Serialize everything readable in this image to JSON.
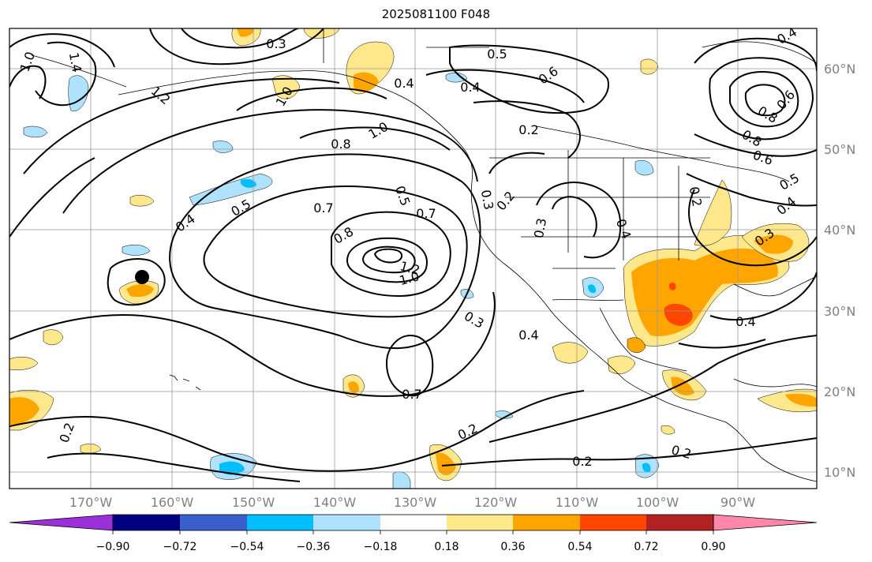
{
  "title": "2025081100 F048",
  "lon_labels": [
    "170°W",
    "160°W",
    "150°W",
    "140°W",
    "130°W",
    "120°W",
    "110°W",
    "100°W",
    "90°W"
  ],
  "lat_labels": [
    "60°N",
    "50°N",
    "40°N",
    "30°N",
    "20°N",
    "10°N"
  ],
  "colorbar": {
    "tick_labels": [
      "−0.90",
      "−0.72",
      "−0.54",
      "−0.36",
      "−0.18",
      "0.18",
      "0.36",
      "0.54",
      "0.72",
      "0.90"
    ],
    "colors": [
      "#9b30d9",
      "#000080",
      "#3a5fcd",
      "#00bfff",
      "#aee2ff",
      "#ffffff",
      "#ffe88c",
      "#ffa500",
      "#ff4500",
      "#b22222",
      "#ff88aa"
    ]
  },
  "contour_labels": [
    "0.3",
    "1.0",
    "1.4",
    "1.2",
    "1.0",
    "0.4",
    "0.4",
    "0.5",
    "0.4",
    "0.6",
    "0.2",
    "0.8",
    "1.0",
    "0.8",
    "0.6",
    "0.4",
    "0.5",
    "0.7",
    "0.8",
    "0.5",
    "0.7",
    "1.2",
    "1.0",
    "0.3",
    "0.2",
    "0.3",
    "0.3",
    "0.4",
    "0.5",
    "0.8",
    "0.6",
    "0.4",
    "0.2",
    "0.4",
    "0.3",
    "0.4",
    "0.7",
    "0.2",
    "0.2",
    "0.2",
    "0.2"
  ],
  "marker": {
    "lat": 34.2,
    "lon": "163.5°W"
  }
}
